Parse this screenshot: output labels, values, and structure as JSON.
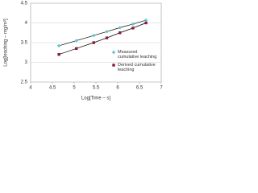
{
  "chart_data": {
    "type": "line",
    "x_label": "Log[Time – s]",
    "y_label": "Log[leaching – mg/m²]",
    "x": [
      4.65,
      5.05,
      5.45,
      5.75,
      6.05,
      6.35,
      6.65
    ],
    "series": [
      {
        "name": "Measured cumulative leaching",
        "color": "#5fc6c9",
        "marker": "diamond",
        "values": [
          3.42,
          3.55,
          3.68,
          3.78,
          3.88,
          3.97,
          4.07
        ]
      },
      {
        "name": "Derived cumulative leaching",
        "color": "#8b1a3a",
        "marker": "square",
        "values": [
          3.2,
          3.35,
          3.5,
          3.62,
          3.75,
          3.87,
          4.0
        ]
      }
    ],
    "line_color": "#000000",
    "xlim": [
      4,
      7
    ],
    "xticks": [
      4,
      4.5,
      5,
      5.5,
      6,
      6.5,
      7
    ],
    "ylim": [
      2.5,
      4.5
    ],
    "yticks": [
      2.5,
      3,
      3.5,
      4,
      4.5
    ],
    "grid": true,
    "legend": "bottom-right"
  }
}
